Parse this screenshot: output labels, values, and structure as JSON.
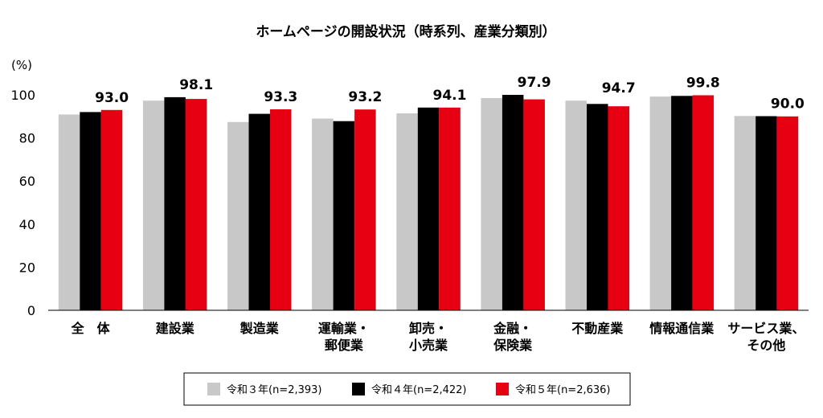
{
  "chart_data": {
    "type": "bar",
    "title": "ホームページの開設状況（時系列、産業分類別）",
    "ylabel": "(%)",
    "ylim": [
      0,
      100
    ],
    "yticks": [
      0,
      20,
      40,
      60,
      80,
      100
    ],
    "categories": [
      [
        "全　体"
      ],
      [
        "建設業"
      ],
      [
        "製造業"
      ],
      [
        "運輸業・",
        "郵便業"
      ],
      [
        "卸売・",
        "小売業"
      ],
      [
        "金融・",
        "保険業"
      ],
      [
        "不動産業"
      ],
      [
        "情報通信業"
      ],
      [
        "サービス業、",
        "その他"
      ]
    ],
    "series": [
      {
        "name": "令和３年(n=2,393)",
        "color": "#c8c8c8",
        "values": [
          90.9,
          97.3,
          87.4,
          89.0,
          91.4,
          98.5,
          97.3,
          99.2,
          90.2
        ]
      },
      {
        "name": "令和４年(n=2,422)",
        "color": "#000000",
        "values": [
          92.0,
          98.9,
          91.2,
          87.8,
          94.1,
          100.0,
          95.8,
          99.5,
          90.1
        ]
      },
      {
        "name": "令和５年(n=2,636)",
        "color": "#e60012",
        "values": [
          93.0,
          98.1,
          93.3,
          93.2,
          94.1,
          97.9,
          94.7,
          99.8,
          90.0
        ]
      }
    ],
    "data_labels": [
      "93.0",
      "98.1",
      "93.3",
      "93.2",
      "94.1",
      "97.9",
      "94.7",
      "99.8",
      "90.0"
    ],
    "legend_position": "bottom"
  }
}
